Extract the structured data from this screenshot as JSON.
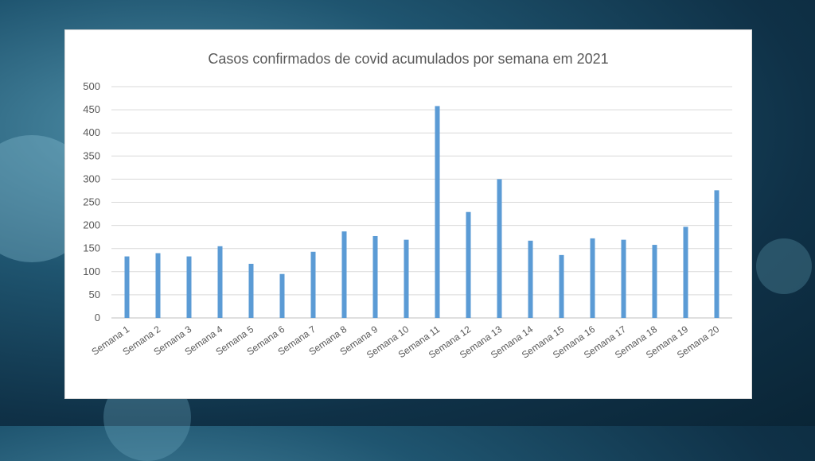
{
  "chart_data": {
    "type": "bar",
    "title": "Casos confirmados de covid acumulados por semana em 2021",
    "xlabel": "",
    "ylabel": "",
    "ylim": [
      0,
      500
    ],
    "yticks": [
      0,
      50,
      100,
      150,
      200,
      250,
      300,
      350,
      400,
      450,
      500
    ],
    "grid": true,
    "legend": "none",
    "bar_color": "#5b9bd5",
    "categories": [
      "Semana 1",
      "Semana 2",
      "Semana 3",
      "Semana 4",
      "Semana 5",
      "Semana 6",
      "Semana 7",
      "Semana 8",
      "Semana 9",
      "Semana 10",
      "Semana 11",
      "Semana 12",
      "Semana 13",
      "Semana 14",
      "Semana 15",
      "Semana 16",
      "Semana 17",
      "Semana 18",
      "Semana 19",
      "Semana 20"
    ],
    "values": [
      133,
      140,
      133,
      155,
      117,
      95,
      143,
      187,
      177,
      169,
      458,
      229,
      300,
      167,
      136,
      172,
      169,
      158,
      197,
      276
    ]
  }
}
